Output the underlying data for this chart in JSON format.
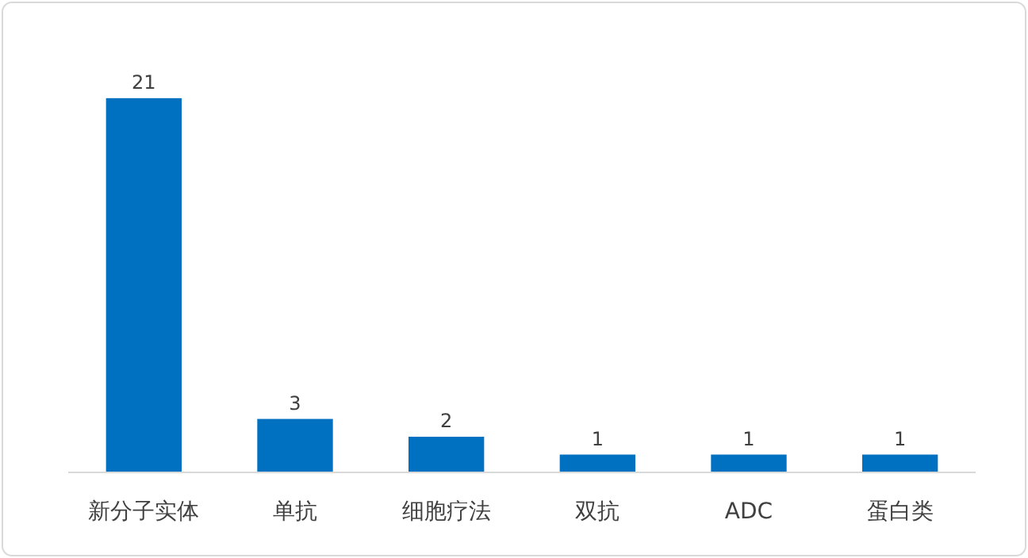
{
  "chart_data": {
    "type": "bar",
    "categories": [
      "新分子实体",
      "单抗",
      "细胞疗法",
      "双抗",
      "ADC",
      "蛋白类"
    ],
    "values": [
      21,
      3,
      2,
      1,
      1,
      1
    ],
    "color": "#0070c0",
    "data_labels": true
  }
}
